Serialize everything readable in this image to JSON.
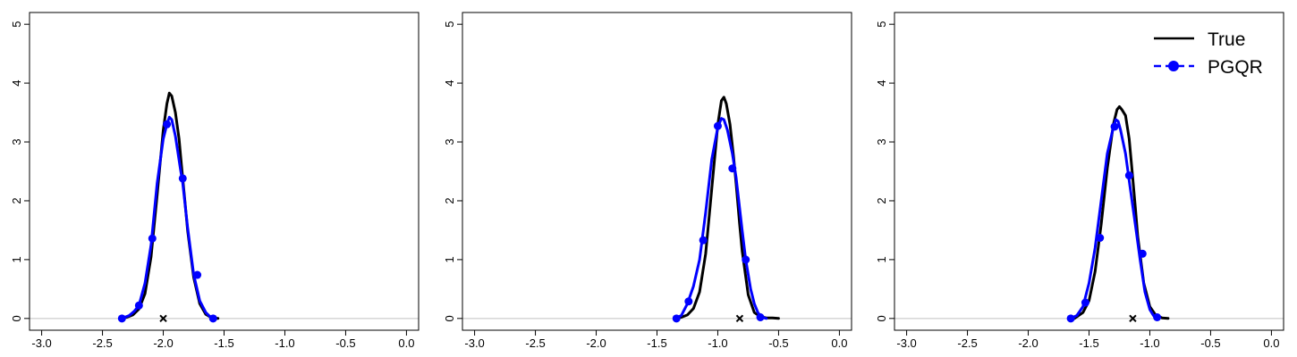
{
  "chart_data": [
    {
      "type": "line",
      "xlim": [
        -3.1,
        0.1
      ],
      "ylim": [
        -0.2,
        5.2
      ],
      "x_ticks": [
        -3.0,
        -2.5,
        -2.0,
        -1.5,
        -1.0,
        -0.5,
        0.0
      ],
      "x_tick_labels": [
        "-3.0",
        "-2.5",
        "-2.0",
        "-1.5",
        "-1.0",
        "-0.5",
        "0.0"
      ],
      "y_ticks": [
        0,
        1,
        2,
        3,
        4,
        5
      ],
      "y_tick_labels": [
        "0",
        "1",
        "2",
        "3",
        "4",
        "5"
      ],
      "grid": false,
      "reference_line_y": 0,
      "marker_x": -2.0,
      "series": [
        {
          "name": "True",
          "color": "#000000",
          "style": "solid",
          "x": [
            -2.35,
            -2.3,
            -2.25,
            -2.2,
            -2.15,
            -2.1,
            -2.05,
            -2.0,
            -1.97,
            -1.95,
            -1.93,
            -1.9,
            -1.87,
            -1.85,
            -1.82,
            -1.8,
            -1.75,
            -1.7,
            -1.65,
            -1.6,
            -1.55
          ],
          "y": [
            0.0,
            0.02,
            0.06,
            0.16,
            0.42,
            1.05,
            2.1,
            3.2,
            3.65,
            3.83,
            3.78,
            3.5,
            3.05,
            2.6,
            1.95,
            1.5,
            0.7,
            0.25,
            0.07,
            0.01,
            0.0
          ]
        },
        {
          "name": "PGQR",
          "color": "#0000ff",
          "style": "dashed-marker",
          "x": [
            -2.34,
            -2.28,
            -2.24,
            -2.2,
            -2.15,
            -2.1,
            -2.05,
            -2.0,
            -1.97,
            -1.95,
            -1.93,
            -1.9,
            -1.86,
            -1.84,
            -1.8,
            -1.75,
            -1.7,
            -1.65,
            -1.62,
            -1.59
          ],
          "y": [
            0.0,
            0.05,
            0.12,
            0.22,
            0.6,
            1.25,
            2.3,
            3.05,
            3.3,
            3.42,
            3.38,
            3.1,
            2.55,
            2.3,
            1.55,
            0.75,
            0.3,
            0.1,
            0.04,
            0.0
          ],
          "markers_x": [
            -2.34,
            -2.2,
            -2.09,
            -1.97,
            -1.84,
            -1.72,
            -1.59
          ],
          "markers_y": [
            0.0,
            0.22,
            1.36,
            3.3,
            2.38,
            0.74,
            0.0
          ]
        }
      ]
    },
    {
      "type": "line",
      "xlim": [
        -3.1,
        0.1
      ],
      "ylim": [
        -0.2,
        5.2
      ],
      "x_ticks": [
        -3.0,
        -2.5,
        -2.0,
        -1.5,
        -1.0,
        -0.5,
        0.0
      ],
      "x_tick_labels": [
        "-3.0",
        "-2.5",
        "-2.0",
        "-1.5",
        "-1.0",
        "-0.5",
        "0.0"
      ],
      "y_ticks": [
        0,
        1,
        2,
        3,
        4,
        5
      ],
      "y_tick_labels": [
        "0",
        "1",
        "2",
        "3",
        "4",
        "5"
      ],
      "grid": false,
      "reference_line_y": 0,
      "marker_x": -0.82,
      "series": [
        {
          "name": "True",
          "color": "#000000",
          "style": "solid",
          "x": [
            -1.35,
            -1.3,
            -1.25,
            -1.2,
            -1.15,
            -1.1,
            -1.05,
            -1.0,
            -0.97,
            -0.95,
            -0.93,
            -0.9,
            -0.87,
            -0.85,
            -0.82,
            -0.8,
            -0.75,
            -0.7,
            -0.65,
            -0.6,
            -0.55,
            -0.5
          ],
          "y": [
            0.0,
            0.02,
            0.06,
            0.17,
            0.45,
            1.1,
            2.2,
            3.3,
            3.7,
            3.76,
            3.65,
            3.3,
            2.75,
            2.3,
            1.6,
            1.15,
            0.4,
            0.1,
            0.03,
            0.01,
            0.01,
            0.0
          ]
        },
        {
          "name": "PGQR",
          "color": "#0000ff",
          "style": "dashed-marker",
          "x": [
            -1.35,
            -1.3,
            -1.25,
            -1.2,
            -1.15,
            -1.1,
            -1.05,
            -1.0,
            -0.97,
            -0.95,
            -0.92,
            -0.88,
            -0.85,
            -0.8,
            -0.77,
            -0.73,
            -0.7,
            -0.67,
            -0.64,
            -0.6
          ],
          "y": [
            0.0,
            0.05,
            0.25,
            0.55,
            1.0,
            1.8,
            2.7,
            3.25,
            3.4,
            3.38,
            3.2,
            2.8,
            2.4,
            1.5,
            1.0,
            0.5,
            0.25,
            0.1,
            0.02,
            0.0
          ],
          "markers_x": [
            -1.34,
            -1.24,
            -1.12,
            -1.0,
            -0.88,
            -0.77,
            -0.65
          ],
          "markers_y": [
            0.0,
            0.29,
            1.33,
            3.27,
            2.55,
            1.0,
            0.02
          ]
        }
      ]
    },
    {
      "type": "line",
      "xlim": [
        -3.1,
        0.1
      ],
      "ylim": [
        -0.2,
        5.2
      ],
      "x_ticks": [
        -3.0,
        -2.5,
        -2.0,
        -1.5,
        -1.0,
        -0.5,
        0.0
      ],
      "x_tick_labels": [
        "-3.0",
        "-2.5",
        "-2.0",
        "-1.5",
        "-1.0",
        "-0.5",
        "0.0"
      ],
      "y_ticks": [
        0,
        1,
        2,
        3,
        4,
        5
      ],
      "y_tick_labels": [
        "0",
        "1",
        "2",
        "3",
        "4",
        "5"
      ],
      "grid": false,
      "reference_line_y": 0,
      "marker_x": -1.14,
      "legend_position": "top-right",
      "series": [
        {
          "name": "True",
          "color": "#000000",
          "style": "solid",
          "x": [
            -1.62,
            -1.55,
            -1.5,
            -1.45,
            -1.4,
            -1.35,
            -1.3,
            -1.27,
            -1.25,
            -1.23,
            -1.2,
            -1.17,
            -1.15,
            -1.12,
            -1.1,
            -1.05,
            -1.0,
            -0.95,
            -0.9,
            -0.85
          ],
          "y": [
            0.0,
            0.1,
            0.3,
            0.8,
            1.6,
            2.55,
            3.3,
            3.55,
            3.6,
            3.55,
            3.45,
            3.05,
            2.6,
            1.9,
            1.4,
            0.6,
            0.2,
            0.05,
            0.01,
            0.0
          ]
        },
        {
          "name": "PGQR",
          "color": "#0000ff",
          "style": "dashed-marker",
          "x": [
            -1.65,
            -1.6,
            -1.55,
            -1.5,
            -1.45,
            -1.4,
            -1.35,
            -1.3,
            -1.28,
            -1.26,
            -1.24,
            -1.2,
            -1.16,
            -1.12,
            -1.08,
            -1.04,
            -1.0,
            -0.97,
            -0.94
          ],
          "y": [
            0.0,
            0.05,
            0.2,
            0.6,
            1.2,
            2.0,
            2.8,
            3.25,
            3.38,
            3.35,
            3.2,
            2.8,
            2.2,
            1.6,
            1.0,
            0.45,
            0.15,
            0.05,
            0.0
          ],
          "markers_x": [
            -1.65,
            -1.53,
            -1.41,
            -1.29,
            -1.17,
            -1.06,
            -0.94
          ],
          "markers_y": [
            0.0,
            0.27,
            1.37,
            3.26,
            2.43,
            1.1,
            0.02
          ]
        }
      ]
    }
  ],
  "legend": {
    "entries": [
      {
        "label": "True",
        "color": "#000000",
        "style": "solid"
      },
      {
        "label": "PGQR",
        "color": "#0000ff",
        "style": "dashed-marker"
      }
    ]
  },
  "colors": {
    "true": "#000000",
    "pgqr": "#0000ff",
    "reference_line": "#c0c0c0"
  }
}
